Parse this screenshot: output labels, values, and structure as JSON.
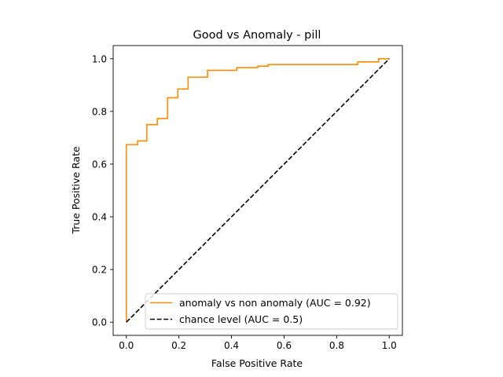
{
  "chart_data": {
    "type": "line",
    "title": "Good vs Anomaly - pill",
    "xlabel": "False Positive Rate",
    "ylabel": "True Positive Rate",
    "xlim": [
      -0.05,
      1.05
    ],
    "ylim": [
      -0.05,
      1.05
    ],
    "x_ticks": [
      "0.0",
      "0.2",
      "0.4",
      "0.6",
      "0.8",
      "1.0"
    ],
    "y_ticks": [
      "0.0",
      "0.2",
      "0.4",
      "0.6",
      "0.8",
      "1.0"
    ],
    "grid": false,
    "legend_position": "lower-right",
    "series": [
      {
        "name": "anomaly vs non anomaly (AUC = 0.92)",
        "color": "#ff8c00",
        "style": "solid",
        "points": [
          [
            0.0,
            0.0
          ],
          [
            0.0,
            0.674
          ],
          [
            0.043,
            0.674
          ],
          [
            0.043,
            0.688
          ],
          [
            0.078,
            0.688
          ],
          [
            0.078,
            0.75
          ],
          [
            0.118,
            0.75
          ],
          [
            0.118,
            0.773
          ],
          [
            0.157,
            0.773
          ],
          [
            0.157,
            0.852
          ],
          [
            0.196,
            0.852
          ],
          [
            0.196,
            0.885
          ],
          [
            0.235,
            0.885
          ],
          [
            0.235,
            0.93
          ],
          [
            0.309,
            0.93
          ],
          [
            0.309,
            0.956
          ],
          [
            0.42,
            0.956
          ],
          [
            0.42,
            0.966
          ],
          [
            0.5,
            0.966
          ],
          [
            0.5,
            0.972
          ],
          [
            0.54,
            0.972
          ],
          [
            0.54,
            0.978
          ],
          [
            0.88,
            0.978
          ],
          [
            0.88,
            0.988
          ],
          [
            0.96,
            0.988
          ],
          [
            0.96,
            1.0
          ],
          [
            1.0,
            1.0
          ]
        ]
      },
      {
        "name": "chance level (AUC = 0.5)",
        "color": "#000000",
        "style": "dashed",
        "points": [
          [
            0.0,
            0.0
          ],
          [
            1.0,
            1.0
          ]
        ]
      }
    ]
  }
}
